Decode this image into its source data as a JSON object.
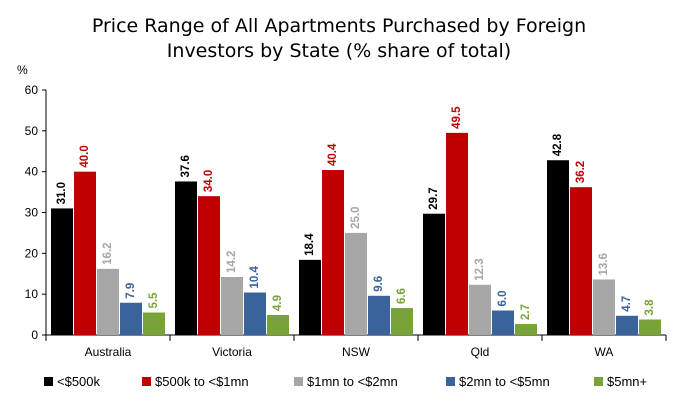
{
  "title_line1": "Price Range of All Apartments Purchased by Foreign",
  "title_line2": "Investors by State (% share of total)",
  "chart_data": {
    "type": "bar",
    "title": "Price Range of All Apartments Purchased by Foreign Investors by State (% share of total)",
    "ylabel": "%",
    "xlabel": "",
    "ylim": [
      0,
      60
    ],
    "yticks": [
      "0",
      "10",
      "20",
      "30",
      "40",
      "50",
      "60"
    ],
    "grid": false,
    "legend_position": "bottom",
    "categories": [
      "Australia",
      "Victoria",
      "NSW",
      "Qld",
      "WA"
    ],
    "series": [
      {
        "name": "<$500k",
        "color": "#000000",
        "label_color": "#000000",
        "values": [
          31.0,
          37.6,
          18.4,
          29.7,
          42.8
        ],
        "labels": [
          "31.0",
          "37.6",
          "18.4",
          "29.7",
          "42.8"
        ]
      },
      {
        "name": "$500k to <$1mn",
        "color": "#c00000",
        "label_color": "#c00000",
        "values": [
          40.0,
          34.0,
          40.4,
          49.5,
          36.2
        ],
        "labels": [
          "40.0",
          "34.0",
          "40.4",
          "49.5",
          "36.2"
        ]
      },
      {
        "name": "$1mn to <$2mn",
        "color": "#a6a6a6",
        "label_color": "#a6a6a6",
        "values": [
          16.2,
          14.2,
          25.0,
          12.3,
          13.6
        ],
        "labels": [
          "16.2",
          "14.2",
          "25.0",
          "12.3",
          "13.6"
        ]
      },
      {
        "name": "$2mn to <$5mn",
        "color": "#3a639c",
        "label_color": "#3a639c",
        "values": [
          7.9,
          10.4,
          9.6,
          6.0,
          4.7
        ],
        "labels": [
          "7.9",
          "10.4",
          "9.6",
          "6.0",
          "4.7"
        ]
      },
      {
        "name": "$5mn+",
        "color": "#77a33a",
        "label_color": "#77a33a",
        "values": [
          5.5,
          4.9,
          6.6,
          2.7,
          3.8
        ],
        "labels": [
          "5.5",
          "4.9",
          "6.6",
          "2.7",
          "3.8"
        ]
      }
    ]
  }
}
